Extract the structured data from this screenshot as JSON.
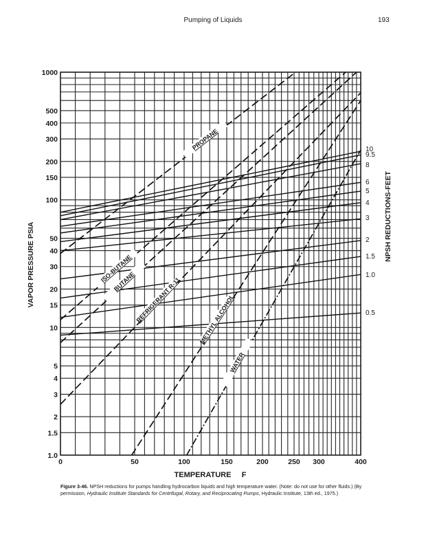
{
  "page": {
    "running_head": "Pumping of Liquids",
    "page_number": "193",
    "caption_label": "Figure 3-46.",
    "caption_text": "NPSH reductions for pumps handling hydrocarbon liquids and high temperature water. (Note: do not use for other fluids.) (By permission,",
    "caption_italic": "Hydraulic Institute Standards for Centrifugal, Rotary, and Reciprocating Pumps,",
    "caption_tail": "Hydraulic Institute, 13th ed., 1975.)"
  },
  "chart_data": {
    "type": "line",
    "title": "",
    "xlabel": "TEMPERATURE     F",
    "ylabel": "VAPOR PRESSURE PSIA",
    "y2label": "NPSH REDUCTIONS-FEET",
    "xlim": [
      0,
      400
    ],
    "ylim": [
      1,
      1000
    ],
    "yscale": "log",
    "grid": true,
    "x_ticks": [
      "0",
      "50",
      "100",
      "150",
      "200",
      "250",
      "300",
      "400"
    ],
    "y_ticks": [
      "1000",
      "500",
      "400",
      "300",
      "200",
      "150",
      "100",
      "50",
      "40",
      "30",
      "20",
      "15",
      "10",
      "5",
      "4",
      "3",
      "2",
      "1.5",
      "1.0"
    ],
    "fluid_lines": [
      {
        "name": "PROPANE",
        "points": [
          [
            0,
            38
          ],
          [
            253,
            1000
          ]
        ]
      },
      {
        "name": "ISO-BUTANE",
        "points": [
          [
            0,
            11.5
          ],
          [
            364,
            1000
          ]
        ]
      },
      {
        "name": "BUTANE",
        "points": [
          [
            0,
            7.6
          ],
          [
            390,
            1000
          ]
        ]
      },
      {
        "name": "REFRIGERANT R-11",
        "points": [
          [
            0,
            2.5
          ],
          [
            400,
            690
          ]
        ]
      },
      {
        "name": "METHYL ALCOHOL",
        "points": [
          [
            48,
            1.0
          ],
          [
            400,
            600
          ]
        ]
      },
      {
        "name": "WATER",
        "points": [
          [
            103,
            1.0
          ],
          [
            400,
            246
          ]
        ]
      }
    ],
    "npsh_lines": [
      {
        "label": "10",
        "p_at_0F": 80,
        "p_at_400F": 240
      },
      {
        "label": "9.5",
        "p_at_0F": 75,
        "p_at_400F": 225
      },
      {
        "label": "8",
        "p_at_0F": 70,
        "p_at_400F": 192
      },
      {
        "label": "6",
        "p_at_0F": 62,
        "p_at_400F": 137
      },
      {
        "label": "5",
        "p_at_0F": 55,
        "p_at_400F": 117
      },
      {
        "label": "4",
        "p_at_0F": 47,
        "p_at_400F": 95
      },
      {
        "label": "3",
        "p_at_0F": 40,
        "p_at_400F": 71
      },
      {
        "label": "2",
        "p_at_0F": 24,
        "p_at_400F": 48
      },
      {
        "label": "1.5",
        "p_at_0F": 17,
        "p_at_400F": 36
      },
      {
        "label": "1.0",
        "p_at_0F": 12,
        "p_at_400F": 26
      },
      {
        "label": "0.5",
        "p_at_0F": 8.7,
        "p_at_400F": 13
      }
    ]
  }
}
